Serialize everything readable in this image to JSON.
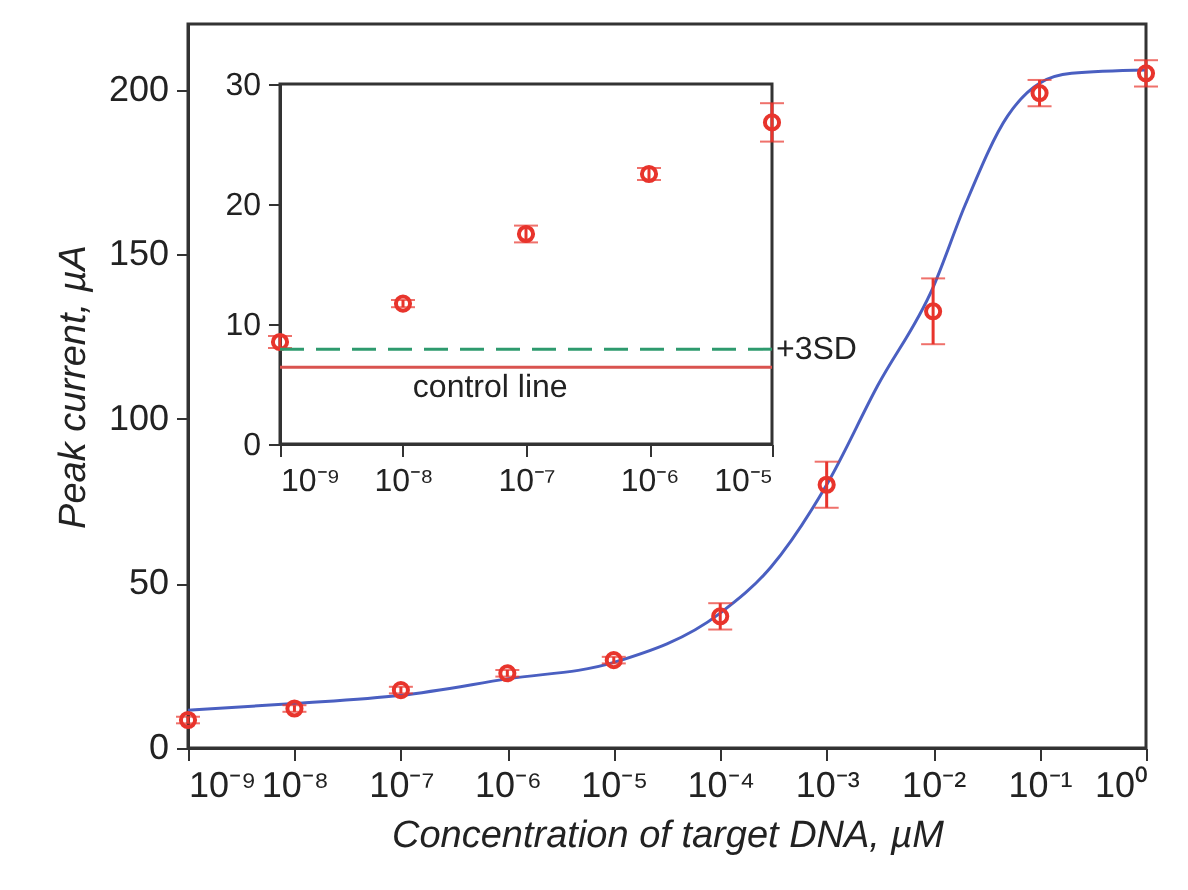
{
  "chart_data": [
    {
      "type": "scatter",
      "xlabel": "Concentration of target DNA, µM",
      "ylabel": "Peak current, µA",
      "log": "x",
      "marker": "circle",
      "grid": false,
      "xlim": [
        1e-09,
        1
      ],
      "ylim": [
        0,
        220
      ],
      "xticks": [
        {
          "value": 1e-09,
          "label": "10⁻⁹"
        },
        {
          "value": 1e-08,
          "label": "10⁻⁸"
        },
        {
          "value": 1e-07,
          "label": "10⁻⁷"
        },
        {
          "value": 1e-06,
          "label": "10⁻⁶"
        },
        {
          "value": 1e-05,
          "label": "10⁻⁵"
        },
        {
          "value": 0.0001,
          "label": "10⁻⁴"
        },
        {
          "value": 0.001,
          "label": "10⁻³"
        },
        {
          "value": 0.01,
          "label": "10⁻²"
        },
        {
          "value": 0.1,
          "label": "10⁻¹"
        },
        {
          "value": 1,
          "label": "10⁰"
        }
      ],
      "yticks": [
        0,
        50,
        100,
        150,
        200
      ],
      "series": [
        {
          "type": "line",
          "marker": "none",
          "color": "#4a5fc1",
          "x": [
            1e-09,
            1e-08,
            1e-07,
            1e-06,
            1e-05,
            0.0001,
            0.0003,
            0.001,
            0.003,
            0.01,
            0.02,
            0.05,
            0.1,
            0.2,
            1
          ],
          "values": [
            11.5,
            13.5,
            16,
            21,
            26,
            41,
            55,
            80,
            110,
            140,
            165,
            192,
            202,
            205,
            206
          ]
        },
        {
          "type": "scatter",
          "color": "#e8342c",
          "x": [
            1e-09,
            1e-08,
            1e-07,
            1e-06,
            1e-05,
            0.0001,
            0.001,
            0.01,
            0.1,
            1
          ],
          "values": [
            8.5,
            12,
            17.6,
            22.7,
            26.7,
            40,
            80,
            132.7,
            199,
            205
          ],
          "errors": [
            1,
            1,
            1,
            1,
            1,
            4,
            7,
            10,
            4,
            4
          ]
        }
      ]
    },
    {
      "type": "scatter",
      "log": "x",
      "marker": "circle",
      "grid": false,
      "xlim": [
        1e-09,
        1e-05
      ],
      "ylim": [
        0,
        30
      ],
      "xticks": [
        {
          "value": 1e-09,
          "label": "10⁻⁹"
        },
        {
          "value": 1e-08,
          "label": "10⁻⁸"
        },
        {
          "value": 1e-07,
          "label": "10⁻⁷"
        },
        {
          "value": 1e-06,
          "label": "10⁻⁶"
        },
        {
          "value": 1e-05,
          "label": "10⁻⁵"
        }
      ],
      "yticks": [
        0,
        10,
        20,
        30
      ],
      "series": [
        {
          "type": "scatter",
          "color": "#e8342c",
          "x": [
            1e-09,
            1e-08,
            1e-07,
            1e-06,
            1e-05
          ],
          "values": [
            8.5,
            11.7,
            17.5,
            22.5,
            26.8
          ],
          "errors": [
            0.5,
            0.3,
            0.7,
            0.5,
            1.6
          ]
        }
      ],
      "ref_lines": [
        {
          "axis": "y",
          "value": 7.9,
          "label": "+3SD",
          "color": "#2e9a6e",
          "line_style": "dashed"
        },
        {
          "axis": "y",
          "value": 6.4,
          "label": "control line",
          "color": "#d9534f",
          "line_style": "solid"
        }
      ]
    }
  ]
}
